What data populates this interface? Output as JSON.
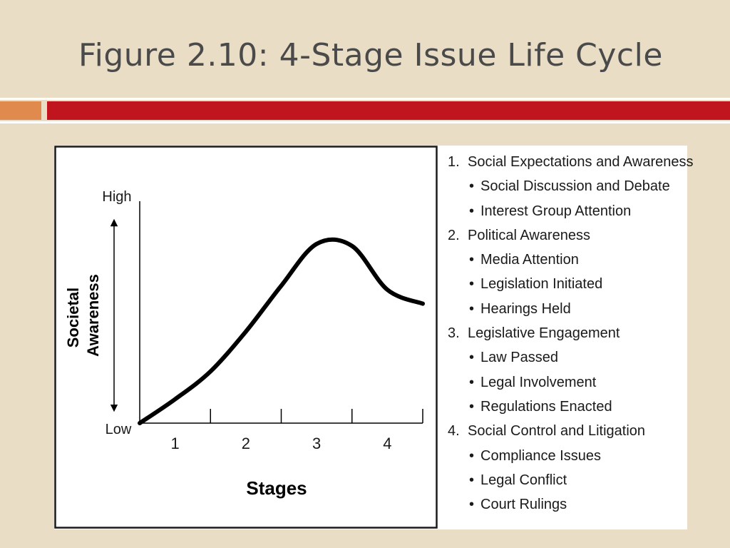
{
  "slide": {
    "title": "Figure 2.10: 4-Stage Issue Life Cycle"
  },
  "colors": {
    "background": "#eaddc5",
    "accent_orange": "#e08a4e",
    "accent_red": "#c0141e",
    "title_text": "#4a4a4a"
  },
  "chart_data": {
    "type": "line",
    "ylabel_lines": [
      "Societal",
      "Awareness"
    ],
    "xlabel": "Stages",
    "y_high_label": "High",
    "y_low_label": "Low",
    "categories": [
      "1",
      "2",
      "3",
      "4"
    ],
    "x": [
      0,
      0.5,
      1,
      1.5,
      2,
      2.5,
      3,
      3.5,
      4
    ],
    "values": [
      0,
      0.12,
      0.26,
      0.46,
      0.69,
      0.9,
      0.89,
      0.67,
      0.6
    ],
    "ylim": [
      0,
      1
    ],
    "xlim": [
      0,
      4
    ],
    "grid": false
  },
  "stages": [
    {
      "number": "1.",
      "label": "Social Expectations and Awareness",
      "items": [
        "Social Discussion and Debate",
        "Interest Group Attention"
      ]
    },
    {
      "number": "2.",
      "label": "Political Awareness",
      "items": [
        "Media Attention",
        "Legislation Initiated",
        "Hearings Held"
      ]
    },
    {
      "number": "3.",
      "label": "Legislative Engagement",
      "items": [
        "Law Passed",
        "Legal Involvement",
        "Regulations Enacted"
      ]
    },
    {
      "number": "4.",
      "label": "Social Control and Litigation",
      "items": [
        "Compliance Issues",
        "Legal Conflict",
        "Court Rulings"
      ]
    }
  ],
  "bullet_glyph": "•"
}
